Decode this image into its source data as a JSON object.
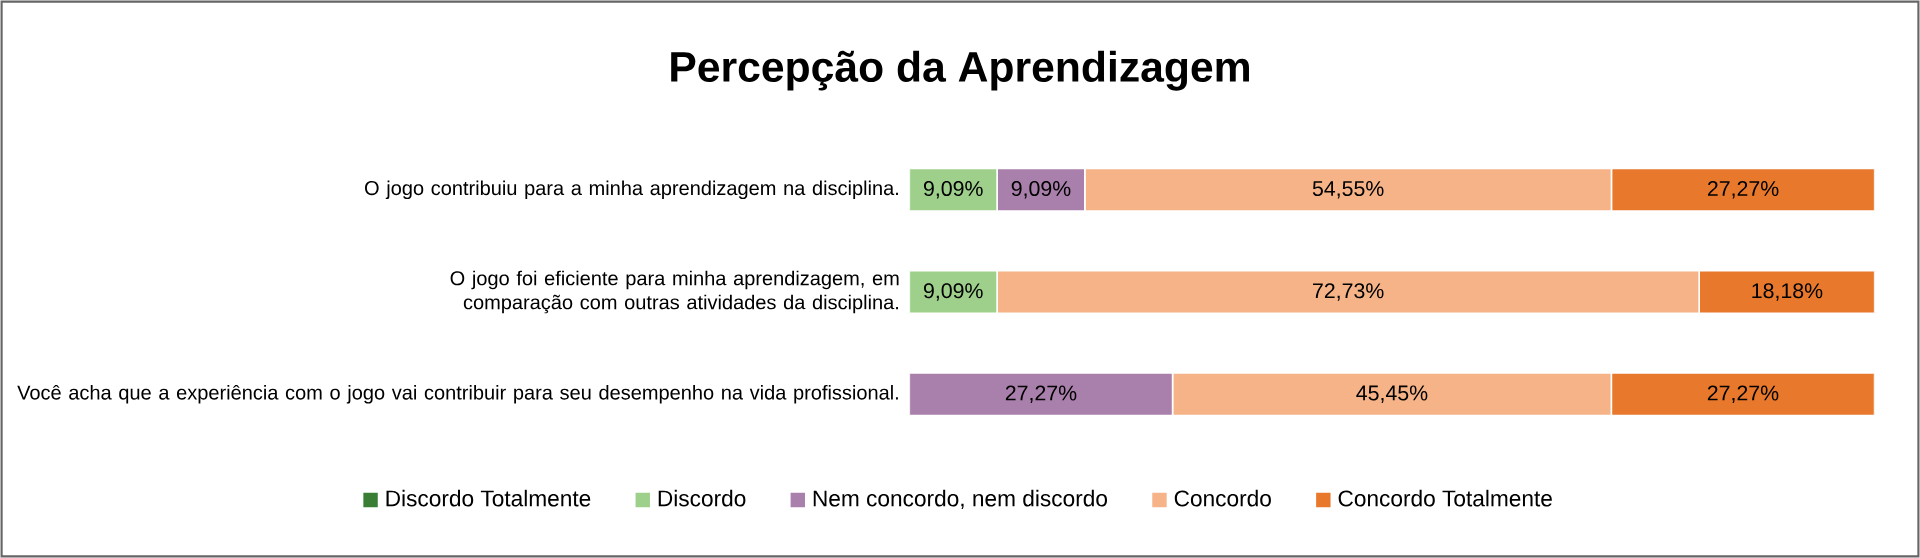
{
  "chart_data": {
    "type": "bar",
    "orientation": "horizontal",
    "stacked": true,
    "title": "Percepção da Aprendizagem",
    "categories": [
      "O jogo contribuiu para a minha aprendizagem na disciplina.",
      "O jogo foi eficiente para minha aprendizagem, em comparação com outras atividades da disciplina.",
      "Você acha que a experiência com o jogo vai contribuir para seu desempenho na vida profissional."
    ],
    "series": [
      {
        "name": "Discordo Totalmente",
        "color": "#3a7d34",
        "values": [
          null,
          null,
          null
        ],
        "value_labels": [
          null,
          null,
          null
        ]
      },
      {
        "name": "Discordo",
        "color": "#9ed08b",
        "values": [
          9.09,
          9.09,
          null
        ],
        "value_labels": [
          "9,09%",
          "9,09%",
          null
        ]
      },
      {
        "name": "Nem concordo, nem discordo",
        "color": "#a97fab",
        "values": [
          9.09,
          null,
          27.27
        ],
        "value_labels": [
          "9,09%",
          null,
          "27,27%"
        ]
      },
      {
        "name": "Concordo",
        "color": "#f5b387",
        "values": [
          54.55,
          72.73,
          45.45
        ],
        "value_labels": [
          "54,55%",
          "72,73%",
          "45,45%"
        ]
      },
      {
        "name": "Concordo Totalmente",
        "color": "#e8782c",
        "values": [
          27.27,
          18.18,
          27.27
        ],
        "value_labels": [
          "27,27%",
          "18,18%",
          "27,27%"
        ]
      }
    ],
    "tick_labels": "y",
    "grid": false,
    "legend": "bottom"
  }
}
